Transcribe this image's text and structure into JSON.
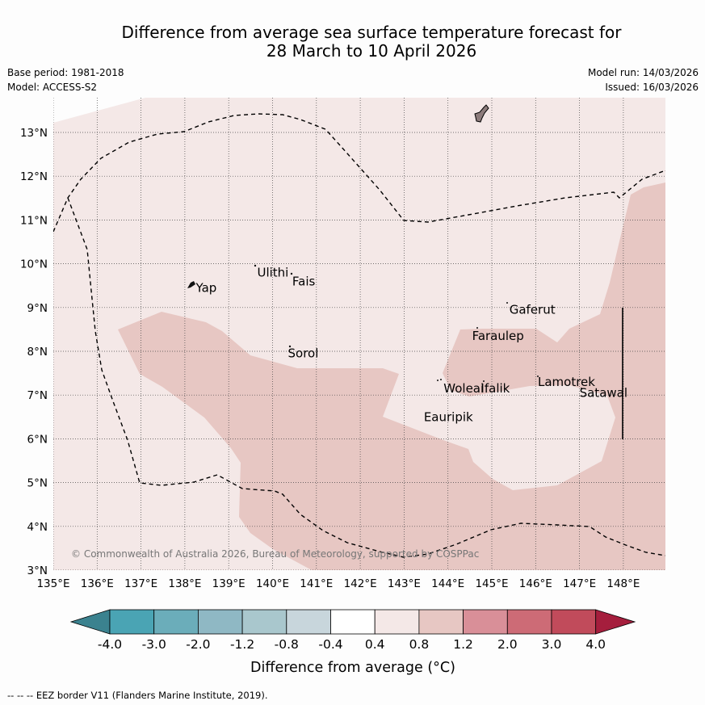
{
  "title": {
    "line1": "Difference from average sea surface temperature forecast for",
    "line2": "28 March to 10 April 2026"
  },
  "meta": {
    "base_period": "Base period: 1981-2018",
    "model": "Model: ACCESS-S2",
    "model_run": "Model run: 14/03/2026",
    "issued": "Issued: 16/03/2026"
  },
  "map": {
    "lon_range": [
      135,
      149
    ],
    "lat_range": [
      3,
      13.8
    ],
    "x_ticks": [
      135,
      136,
      137,
      138,
      139,
      140,
      141,
      142,
      143,
      144,
      145,
      146,
      147,
      148
    ],
    "x_tick_labels": [
      "135°E",
      "136°E",
      "137°E",
      "138°E",
      "139°E",
      "140°E",
      "141°E",
      "142°E",
      "143°E",
      "144°E",
      "145°E",
      "146°E",
      "147°E",
      "148°E"
    ],
    "y_ticks": [
      3,
      4,
      5,
      6,
      7,
      8,
      9,
      10,
      11,
      12,
      13
    ],
    "y_tick_labels": [
      "3°N",
      "4°N",
      "5°N",
      "6°N",
      "7°N",
      "8°N",
      "9°N",
      "10°N",
      "11°N",
      "12°N",
      "13°N"
    ],
    "places": [
      {
        "name": "Yap",
        "lon": 138.25,
        "lat": 9.45
      },
      {
        "name": "Ulithi",
        "lon": 139.65,
        "lat": 9.8
      },
      {
        "name": "Fais",
        "lon": 140.45,
        "lat": 9.6
      },
      {
        "name": "Gaferut",
        "lon": 145.4,
        "lat": 8.95
      },
      {
        "name": "Faraulep",
        "lon": 144.55,
        "lat": 8.35
      },
      {
        "name": "Sorol",
        "lon": 140.35,
        "lat": 7.95
      },
      {
        "name": "Woleai",
        "lon": 143.9,
        "lat": 7.15
      },
      {
        "name": "Ifalik",
        "lon": 144.75,
        "lat": 7.15
      },
      {
        "name": "Lamotrek",
        "lon": 146.05,
        "lat": 7.3
      },
      {
        "name": "Satawal",
        "lon": 147.0,
        "lat": 7.05
      },
      {
        "name": "Eauripik",
        "lon": 143.45,
        "lat": 6.5
      }
    ],
    "copyright": "© Commonwealth of Australia 2026, Bureau of Meteorology, supported by COSPPac",
    "background_color": "#f4e8e7",
    "anomaly_color": "#e7c7c3",
    "land_color": "#8c7b7b"
  },
  "colorbar": {
    "title": "Difference from average (°C)",
    "labels": [
      "-4.0",
      "-3.0",
      "-2.0",
      "-1.2",
      "-0.8",
      "-0.4",
      "0.4",
      "0.8",
      "1.2",
      "2.0",
      "3.0",
      "4.0"
    ],
    "colors": [
      "#3b828f",
      "#4aa4b4",
      "#6badba",
      "#8fb8c4",
      "#a9c7cd",
      "#c8d6dc",
      "#ffffff",
      "#f4e8e7",
      "#e7c7c3",
      "#d98f98",
      "#cd6b76",
      "#c14b5b",
      "#a51e3d"
    ]
  },
  "footnote": "--  --  -- EEZ border V11 (Flanders Marine Institute, 2019)."
}
